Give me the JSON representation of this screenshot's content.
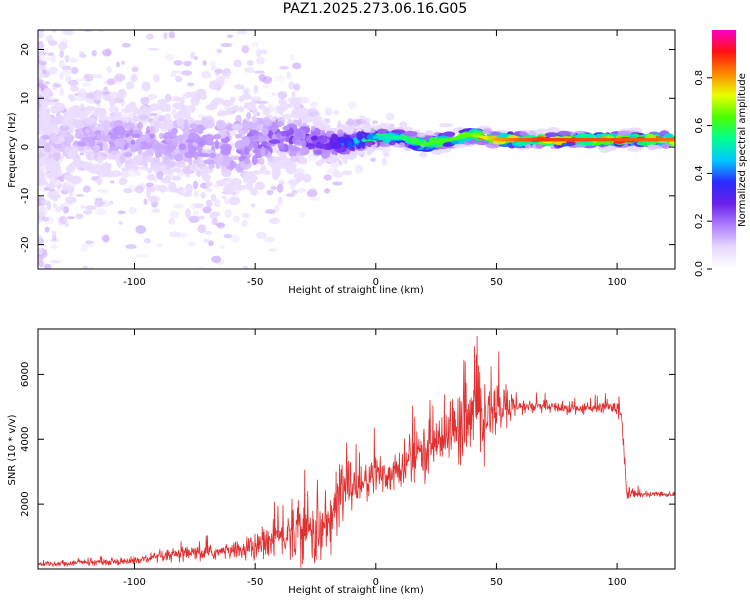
{
  "title": "PAZ1.2025.273.06.16.G05",
  "chart_data": [
    {
      "type": "heatmap",
      "name": "spectrogram",
      "xlabel": "Height of straight line (km)",
      "ylabel": "Frequency (Hz)",
      "xlim": [
        -140,
        124
      ],
      "ylim": [
        -25,
        24
      ],
      "xticks": [
        -100,
        -50,
        0,
        50,
        100
      ],
      "yticks": [
        -20,
        -10,
        0,
        10,
        20
      ],
      "colorbar": {
        "label": "Normalized spectral amplitude",
        "range": [
          0,
          1
        ],
        "ticks": [
          0.0,
          0.2,
          0.4,
          0.6,
          0.8
        ],
        "tick_labels": [
          "0.0",
          "0.2",
          "0.4",
          "0.6",
          "0.8"
        ],
        "colormap": [
          "#ffffff",
          "#e8d8ff",
          "#b080ff",
          "#6a1fe8",
          "#2b2bff",
          "#00c8ff",
          "#00ff90",
          "#4cff00",
          "#e8ff00",
          "#ff8800",
          "#ff1010",
          "#ff00c8"
        ]
      },
      "signal_track": [
        {
          "x": -140,
          "f": 1.0,
          "amp": 0.1,
          "spread": 6.0
        },
        {
          "x": -120,
          "f": 1.5,
          "amp": 0.13,
          "spread": 5.0
        },
        {
          "x": -100,
          "f": 1.5,
          "amp": 0.15,
          "spread": 5.0
        },
        {
          "x": -80,
          "f": 0.5,
          "amp": 0.14,
          "spread": 5.5
        },
        {
          "x": -60,
          "f": 0.0,
          "amp": 0.16,
          "spread": 6.0
        },
        {
          "x": -50,
          "f": 0.5,
          "amp": 0.18,
          "spread": 5.0
        },
        {
          "x": -40,
          "f": 2.0,
          "amp": 0.2,
          "spread": 4.0
        },
        {
          "x": -30,
          "f": 1.5,
          "amp": 0.22,
          "spread": 3.0
        },
        {
          "x": -20,
          "f": 0.5,
          "amp": 0.28,
          "spread": 2.0
        },
        {
          "x": -10,
          "f": 1.0,
          "amp": 0.4,
          "spread": 1.2
        },
        {
          "x": 0,
          "f": 2.0,
          "amp": 0.48,
          "spread": 1.0
        },
        {
          "x": 10,
          "f": 2.0,
          "amp": 0.55,
          "spread": 1.0
        },
        {
          "x": 20,
          "f": 0.5,
          "amp": 0.62,
          "spread": 1.0
        },
        {
          "x": 30,
          "f": 1.5,
          "amp": 0.62,
          "spread": 0.9
        },
        {
          "x": 40,
          "f": 2.5,
          "amp": 0.65,
          "spread": 0.9
        },
        {
          "x": 50,
          "f": 1.5,
          "amp": 0.8,
          "spread": 0.8
        },
        {
          "x": 60,
          "f": 1.5,
          "amp": 0.85,
          "spread": 0.8
        },
        {
          "x": 70,
          "f": 1.5,
          "amp": 0.88,
          "spread": 0.8
        },
        {
          "x": 80,
          "f": 1.5,
          "amp": 0.87,
          "spread": 0.8
        },
        {
          "x": 90,
          "f": 1.5,
          "amp": 0.86,
          "spread": 0.8
        },
        {
          "x": 100,
          "f": 1.5,
          "amp": 0.86,
          "spread": 0.8
        },
        {
          "x": 110,
          "f": 1.5,
          "amp": 0.85,
          "spread": 0.8
        },
        {
          "x": 124,
          "f": 1.5,
          "amp": 0.84,
          "spread": 0.8
        }
      ]
    },
    {
      "type": "line",
      "name": "snr",
      "xlabel": "Height of straight line (km)",
      "ylabel": "SNR (10 * v/v)",
      "xlim": [
        -140,
        124
      ],
      "ylim": [
        0,
        7400
      ],
      "xticks": [
        -100,
        -50,
        0,
        50,
        100
      ],
      "yticks": [
        2000,
        4000,
        6000
      ],
      "color": "#e03030",
      "envelope": [
        {
          "x": -140,
          "mean": 150,
          "noise": 60
        },
        {
          "x": -120,
          "mean": 200,
          "noise": 80
        },
        {
          "x": -100,
          "mean": 250,
          "noise": 100
        },
        {
          "x": -90,
          "mean": 350,
          "noise": 150
        },
        {
          "x": -80,
          "mean": 450,
          "noise": 200
        },
        {
          "x": -70,
          "mean": 500,
          "noise": 200
        },
        {
          "x": -60,
          "mean": 550,
          "noise": 200
        },
        {
          "x": -50,
          "mean": 650,
          "noise": 350
        },
        {
          "x": -40,
          "mean": 1000,
          "noise": 600
        },
        {
          "x": -30,
          "mean": 1200,
          "noise": 800
        },
        {
          "x": -20,
          "mean": 1200,
          "noise": 1000
        },
        {
          "x": -15,
          "mean": 2300,
          "noise": 1000
        },
        {
          "x": -10,
          "mean": 2700,
          "noise": 800
        },
        {
          "x": -5,
          "mean": 2600,
          "noise": 600
        },
        {
          "x": 0,
          "mean": 2900,
          "noise": 600
        },
        {
          "x": 10,
          "mean": 3000,
          "noise": 600
        },
        {
          "x": 20,
          "mean": 3700,
          "noise": 600
        },
        {
          "x": 30,
          "mean": 4200,
          "noise": 800
        },
        {
          "x": 40,
          "mean": 4600,
          "noise": 1200
        },
        {
          "x": 50,
          "mean": 4900,
          "noise": 700
        },
        {
          "x": 60,
          "mean": 5000,
          "noise": 200
        },
        {
          "x": 70,
          "mean": 5000,
          "noise": 150
        },
        {
          "x": 80,
          "mean": 4950,
          "noise": 150
        },
        {
          "x": 90,
          "mean": 4950,
          "noise": 150
        },
        {
          "x": 100,
          "mean": 5000,
          "noise": 200
        },
        {
          "x": 102,
          "mean": 4800,
          "noise": 400
        },
        {
          "x": 104,
          "mean": 2300,
          "noise": 100
        },
        {
          "x": 124,
          "mean": 2300,
          "noise": 60
        }
      ]
    }
  ]
}
